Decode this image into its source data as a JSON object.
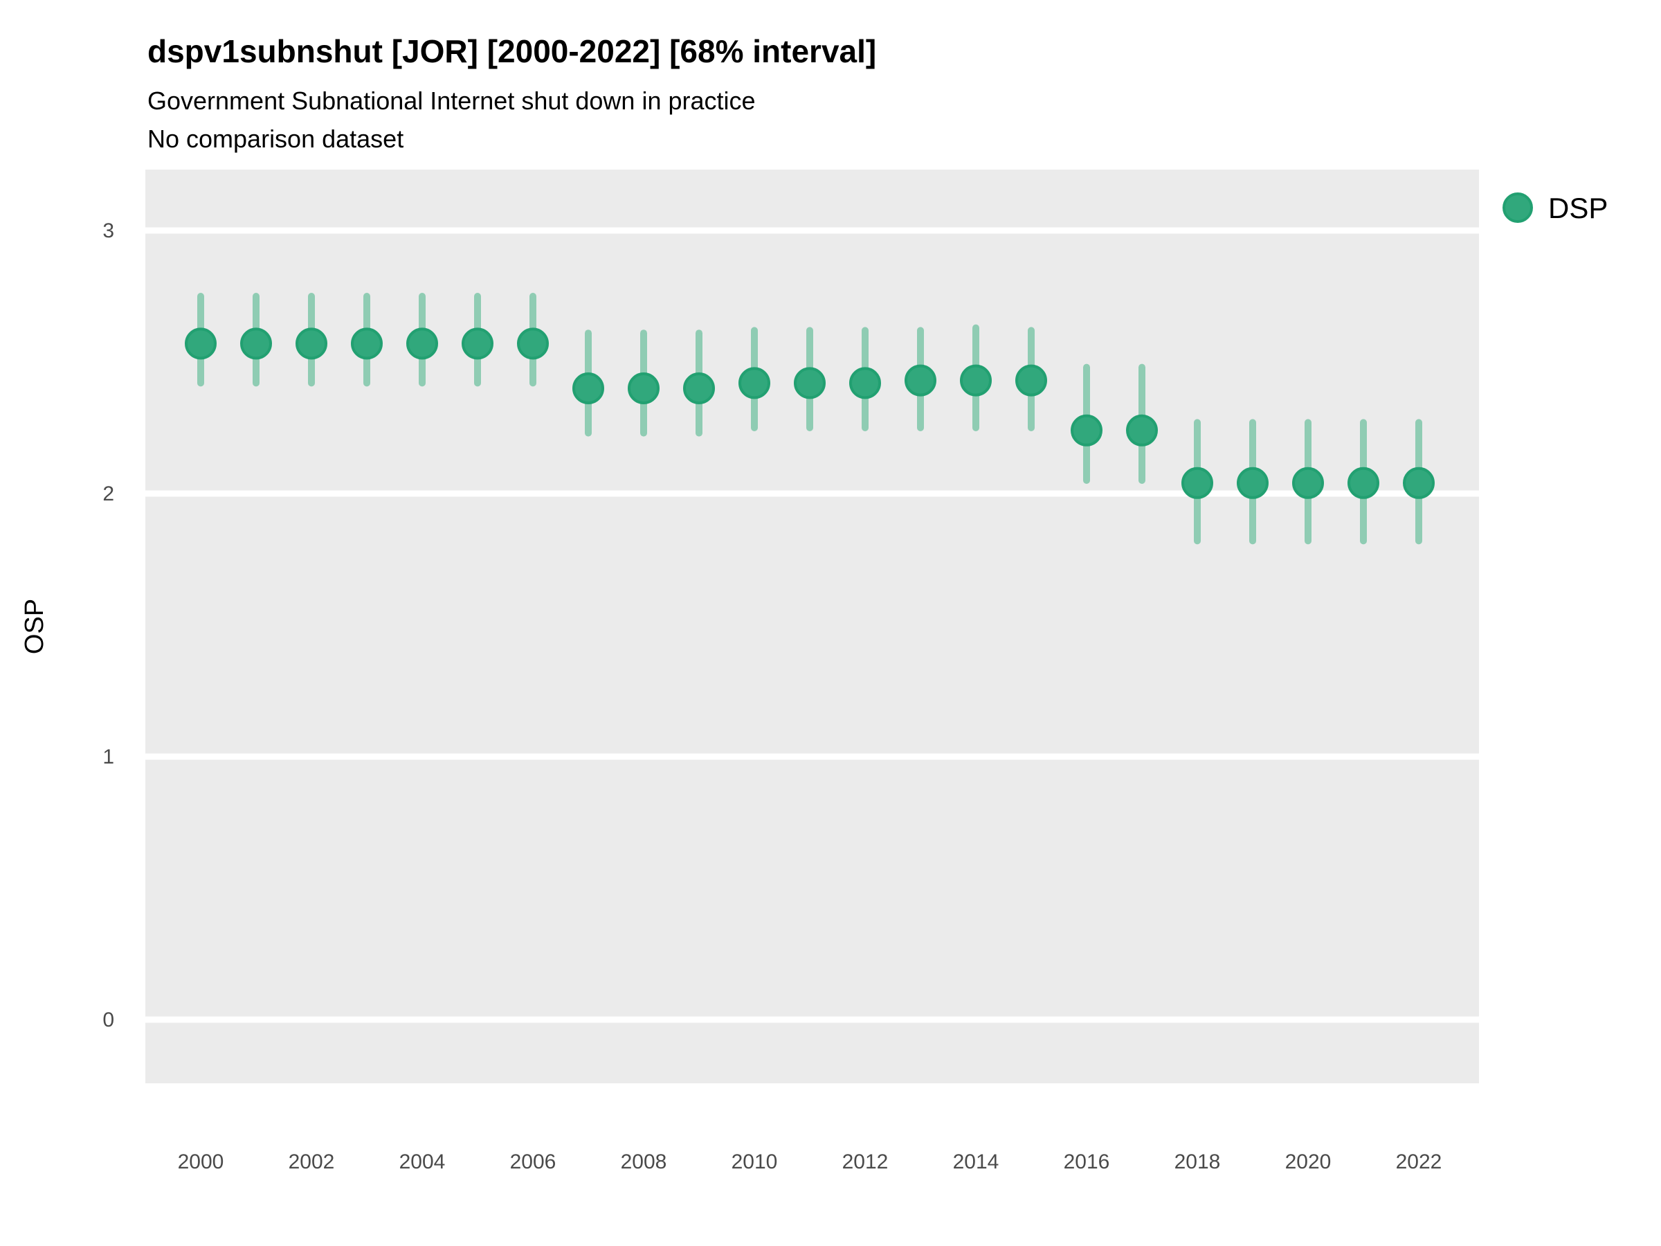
{
  "title": "dspv1subnshut [JOR] [2000-2022] [68% interval]",
  "subtitle_line1": "Government Subnational Internet shut down in practice",
  "subtitle_line2": "No comparison dataset",
  "legend": {
    "label": "DSP"
  },
  "colors": {
    "background": "#ffffff",
    "panel": "#ebebeb",
    "gridline": "#ffffff",
    "point_fill": "#31a87c",
    "point_stroke": "#22a071",
    "interval_line": "#8fccb3",
    "tick_label": "#4a4a4a",
    "text": "#000000"
  },
  "chart_data": {
    "type": "scatter",
    "subtype": "pointrange",
    "title": "dspv1subnshut [JOR] [2000-2022] [68% interval]",
    "subtitle": "Government Subnational Internet shut down in practice / No comparison dataset",
    "xlabel": "",
    "ylabel": "OSP",
    "legend_position": "top-right",
    "grid": true,
    "x_ticks": [
      2000,
      2002,
      2004,
      2006,
      2008,
      2010,
      2012,
      2014,
      2016,
      2018,
      2020,
      2022
    ],
    "y_ticks": [
      0,
      1,
      2,
      3
    ],
    "xlim": [
      1999,
      2023
    ],
    "ylim": [
      -0.25,
      3.25
    ],
    "interval_level": "68%",
    "series": [
      {
        "name": "DSP",
        "points": [
          {
            "year": 2000,
            "est": 2.57,
            "lo": 2.42,
            "hi": 2.75
          },
          {
            "year": 2001,
            "est": 2.57,
            "lo": 2.42,
            "hi": 2.75
          },
          {
            "year": 2002,
            "est": 2.57,
            "lo": 2.42,
            "hi": 2.75
          },
          {
            "year": 2003,
            "est": 2.57,
            "lo": 2.42,
            "hi": 2.75
          },
          {
            "year": 2004,
            "est": 2.57,
            "lo": 2.42,
            "hi": 2.75
          },
          {
            "year": 2005,
            "est": 2.57,
            "lo": 2.42,
            "hi": 2.75
          },
          {
            "year": 2006,
            "est": 2.57,
            "lo": 2.42,
            "hi": 2.75
          },
          {
            "year": 2007,
            "est": 2.4,
            "lo": 2.23,
            "hi": 2.61
          },
          {
            "year": 2008,
            "est": 2.4,
            "lo": 2.23,
            "hi": 2.61
          },
          {
            "year": 2009,
            "est": 2.4,
            "lo": 2.23,
            "hi": 2.61
          },
          {
            "year": 2010,
            "est": 2.42,
            "lo": 2.25,
            "hi": 2.62
          },
          {
            "year": 2011,
            "est": 2.42,
            "lo": 2.25,
            "hi": 2.62
          },
          {
            "year": 2012,
            "est": 2.42,
            "lo": 2.25,
            "hi": 2.62
          },
          {
            "year": 2013,
            "est": 2.43,
            "lo": 2.25,
            "hi": 2.62
          },
          {
            "year": 2014,
            "est": 2.43,
            "lo": 2.25,
            "hi": 2.63
          },
          {
            "year": 2015,
            "est": 2.43,
            "lo": 2.25,
            "hi": 2.62
          },
          {
            "year": 2016,
            "est": 2.24,
            "lo": 2.05,
            "hi": 2.48
          },
          {
            "year": 2017,
            "est": 2.24,
            "lo": 2.05,
            "hi": 2.48
          },
          {
            "year": 2018,
            "est": 2.04,
            "lo": 1.82,
            "hi": 2.27
          },
          {
            "year": 2019,
            "est": 2.04,
            "lo": 1.82,
            "hi": 2.27
          },
          {
            "year": 2020,
            "est": 2.04,
            "lo": 1.82,
            "hi": 2.27
          },
          {
            "year": 2021,
            "est": 2.04,
            "lo": 1.82,
            "hi": 2.27
          },
          {
            "year": 2022,
            "est": 2.04,
            "lo": 1.82,
            "hi": 2.27
          }
        ]
      }
    ]
  }
}
